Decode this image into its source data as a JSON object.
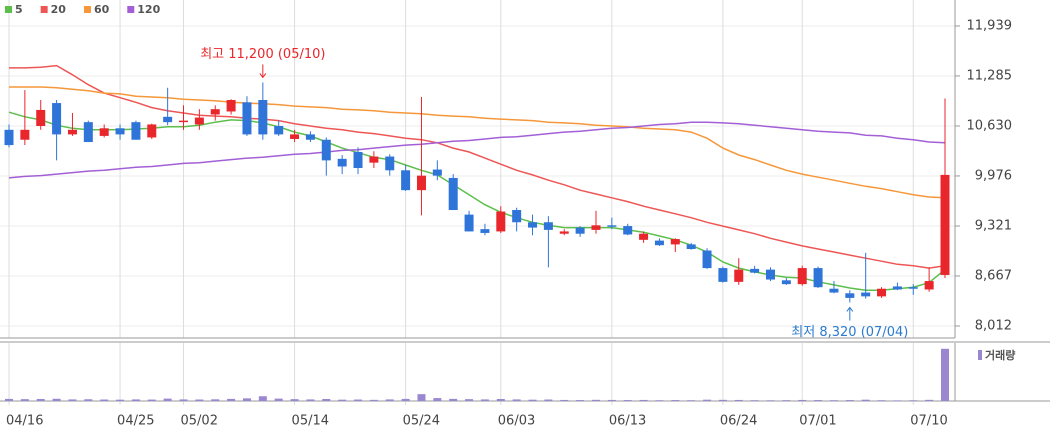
{
  "chart_data": {
    "type": "candlestick",
    "categories": [
      "04/16",
      null,
      null,
      null,
      null,
      null,
      null,
      "04/25",
      null,
      null,
      null,
      "05/02",
      null,
      null,
      null,
      null,
      null,
      null,
      "05/14",
      null,
      null,
      null,
      null,
      null,
      null,
      "05/24",
      null,
      null,
      null,
      null,
      null,
      "06/03",
      null,
      null,
      null,
      null,
      null,
      null,
      "06/13",
      null,
      null,
      null,
      null,
      null,
      null,
      "06/24",
      null,
      null,
      null,
      null,
      "07/01",
      null,
      null,
      null,
      null,
      null,
      null,
      "07/10",
      null,
      null
    ],
    "open": [
      10580,
      10450,
      10630,
      10930,
      10520,
      10680,
      10500,
      10600,
      10680,
      10480,
      10750,
      10690,
      10650,
      10780,
      10820,
      10940,
      10970,
      10630,
      10460,
      10520,
      10450,
      10200,
      10290,
      10150,
      10230,
      10050,
      9790,
      10060,
      9950,
      9470,
      9280,
      9250,
      9530,
      9370,
      9370,
      9220,
      9300,
      9270,
      9330,
      9320,
      9140,
      9130,
      9080,
      9080,
      9000,
      8770,
      8590,
      8760,
      8750,
      8610,
      8560,
      8770,
      8500,
      8440,
      8450,
      8400,
      8530,
      8520,
      8490,
      8680
    ],
    "high": [
      10650,
      11100,
      10970,
      10970,
      10800,
      10700,
      10650,
      10650,
      10700,
      10660,
      11130,
      10900,
      10850,
      10900,
      10980,
      11020,
      11200,
      10700,
      10580,
      10560,
      10480,
      10250,
      10350,
      10300,
      10260,
      10120,
      11010,
      10180,
      10000,
      9520,
      9350,
      9580,
      9560,
      9470,
      9450,
      9280,
      9320,
      9520,
      9430,
      9350,
      9250,
      9160,
      9160,
      9100,
      9030,
      8790,
      8900,
      8800,
      8780,
      8640,
      8800,
      8790,
      8600,
      8480,
      8970,
      8520,
      8580,
      8560,
      8780,
      10990
    ],
    "low": [
      10350,
      10380,
      10580,
      10180,
      10500,
      10420,
      10480,
      10450,
      10450,
      10460,
      10640,
      10580,
      10580,
      10700,
      10780,
      10500,
      10450,
      10500,
      10420,
      10420,
      9980,
      10000,
      10000,
      10080,
      9980,
      9780,
      9460,
      9920,
      9530,
      9250,
      9200,
      9230,
      9250,
      9200,
      8780,
      9200,
      9180,
      9220,
      9280,
      9200,
      9100,
      9060,
      8980,
      9010,
      8760,
      8580,
      8550,
      8700,
      8600,
      8550,
      8540,
      8510,
      8440,
      8320,
      8370,
      8380,
      8480,
      8420,
      8460,
      8640
    ],
    "close": [
      10380,
      10580,
      10840,
      10520,
      10580,
      10420,
      10600,
      10520,
      10450,
      10650,
      10680,
      10700,
      10740,
      10850,
      10970,
      10520,
      10520,
      10520,
      10520,
      10450,
      10180,
      10100,
      10080,
      10230,
      10050,
      9790,
      9980,
      9980,
      9530,
      9250,
      9230,
      9510,
      9370,
      9300,
      9270,
      9250,
      9220,
      9330,
      9320,
      9210,
      9220,
      9070,
      9150,
      9020,
      8770,
      8590,
      8750,
      8710,
      8620,
      8560,
      8770,
      8520,
      8450,
      8380,
      8400,
      8500,
      8490,
      8500,
      8600,
      9990
    ],
    "up_color": "#e8262b",
    "down_color": "#2f74d8",
    "series": [
      {
        "name": "5",
        "color": "#5cbf4a",
        "values": [
          10810,
          10750,
          10710,
          10640,
          10600,
          10580,
          10580,
          10580,
          10590,
          10600,
          10620,
          10620,
          10640,
          10680,
          10710,
          10700,
          10670,
          10620,
          10550,
          10500,
          10420,
          10340,
          10280,
          10220,
          10190,
          10120,
          10050,
          9990,
          9860,
          9730,
          9600,
          9500,
          9430,
          9370,
          9330,
          9300,
          9300,
          9300,
          9300,
          9270,
          9240,
          9190,
          9140,
          9070,
          8980,
          8850,
          8770,
          8720,
          8680,
          8650,
          8640,
          8590,
          8550,
          8510,
          8480,
          8480,
          8500,
          8520,
          8580,
          8750
        ]
      },
      {
        "name": "20",
        "color": "#ee5656",
        "values": [
          11390,
          11390,
          11400,
          11420,
          11300,
          11170,
          11060,
          11000,
          10940,
          10870,
          10830,
          10800,
          10770,
          10760,
          10750,
          10730,
          10720,
          10700,
          10660,
          10630,
          10600,
          10580,
          10550,
          10530,
          10500,
          10470,
          10450,
          10410,
          10340,
          10290,
          10210,
          10130,
          10050,
          9990,
          9920,
          9860,
          9790,
          9740,
          9690,
          9640,
          9580,
          9530,
          9480,
          9430,
          9370,
          9320,
          9270,
          9220,
          9160,
          9110,
          9060,
          9020,
          8980,
          8940,
          8900,
          8860,
          8820,
          8800,
          8770,
          8800
        ]
      },
      {
        "name": "60",
        "color": "#f5973a",
        "values": [
          11140,
          11140,
          11140,
          11130,
          11110,
          11090,
          11060,
          11050,
          11020,
          11010,
          11000,
          10980,
          10970,
          10960,
          10940,
          10930,
          10920,
          10910,
          10890,
          10880,
          10870,
          10850,
          10840,
          10830,
          10810,
          10800,
          10790,
          10770,
          10760,
          10750,
          10730,
          10720,
          10710,
          10700,
          10680,
          10670,
          10660,
          10640,
          10630,
          10620,
          10600,
          10590,
          10580,
          10550,
          10470,
          10340,
          10250,
          10190,
          10120,
          10050,
          10000,
          9960,
          9920,
          9880,
          9840,
          9810,
          9770,
          9730,
          9700,
          9690
        ]
      },
      {
        "name": "120",
        "color": "#a35fd6",
        "values": [
          9950,
          9970,
          9980,
          10000,
          10020,
          10040,
          10050,
          10070,
          10090,
          10100,
          10120,
          10140,
          10150,
          10170,
          10190,
          10210,
          10220,
          10240,
          10260,
          10270,
          10290,
          10310,
          10320,
          10340,
          10360,
          10380,
          10390,
          10410,
          10430,
          10440,
          10460,
          10480,
          10490,
          10510,
          10530,
          10550,
          10560,
          10580,
          10600,
          10610,
          10630,
          10650,
          10660,
          10680,
          10680,
          10670,
          10660,
          10640,
          10620,
          10600,
          10580,
          10560,
          10550,
          10540,
          10510,
          10500,
          10470,
          10450,
          10420,
          10410
        ]
      }
    ],
    "volume": {
      "name": "거래량",
      "color": "#9b86d0",
      "ylim": [
        0,
        1100000
      ],
      "values": [
        40000,
        35000,
        38000,
        42000,
        30000,
        33000,
        28000,
        25000,
        30000,
        27000,
        45000,
        30000,
        28000,
        32000,
        40000,
        50000,
        90000,
        45000,
        35000,
        30000,
        38000,
        25000,
        28000,
        22000,
        30000,
        40000,
        130000,
        55000,
        40000,
        35000,
        30000,
        38000,
        30000,
        25000,
        28000,
        20000,
        18000,
        22000,
        20000,
        18000,
        20000,
        15000,
        18000,
        15000,
        25000,
        22000,
        20000,
        15000,
        14000,
        16000,
        20000,
        18000,
        15000,
        18000,
        25000,
        15000,
        12000,
        14000,
        22000,
        990000
      ]
    },
    "ylim": [
      7855,
      12279
    ],
    "yticks": [
      {
        "value": 8012,
        "label": "8,012"
      },
      {
        "value": 8667,
        "label": "8,667"
      },
      {
        "value": 9321,
        "label": "9,321"
      },
      {
        "value": 9976,
        "label": "9,976"
      },
      {
        "value": 10630,
        "label": "10,630"
      },
      {
        "value": 11285,
        "label": "11,285"
      },
      {
        "value": 11939,
        "label": "11,939"
      }
    ],
    "grid": true,
    "annotations": [
      {
        "text": "최고 11,200 (05/10)",
        "anchor": "high",
        "color": "#e8262b"
      },
      {
        "text": "최저 8,320 (07/04)",
        "anchor": "low",
        "color": "#2a7bd1"
      }
    ]
  }
}
